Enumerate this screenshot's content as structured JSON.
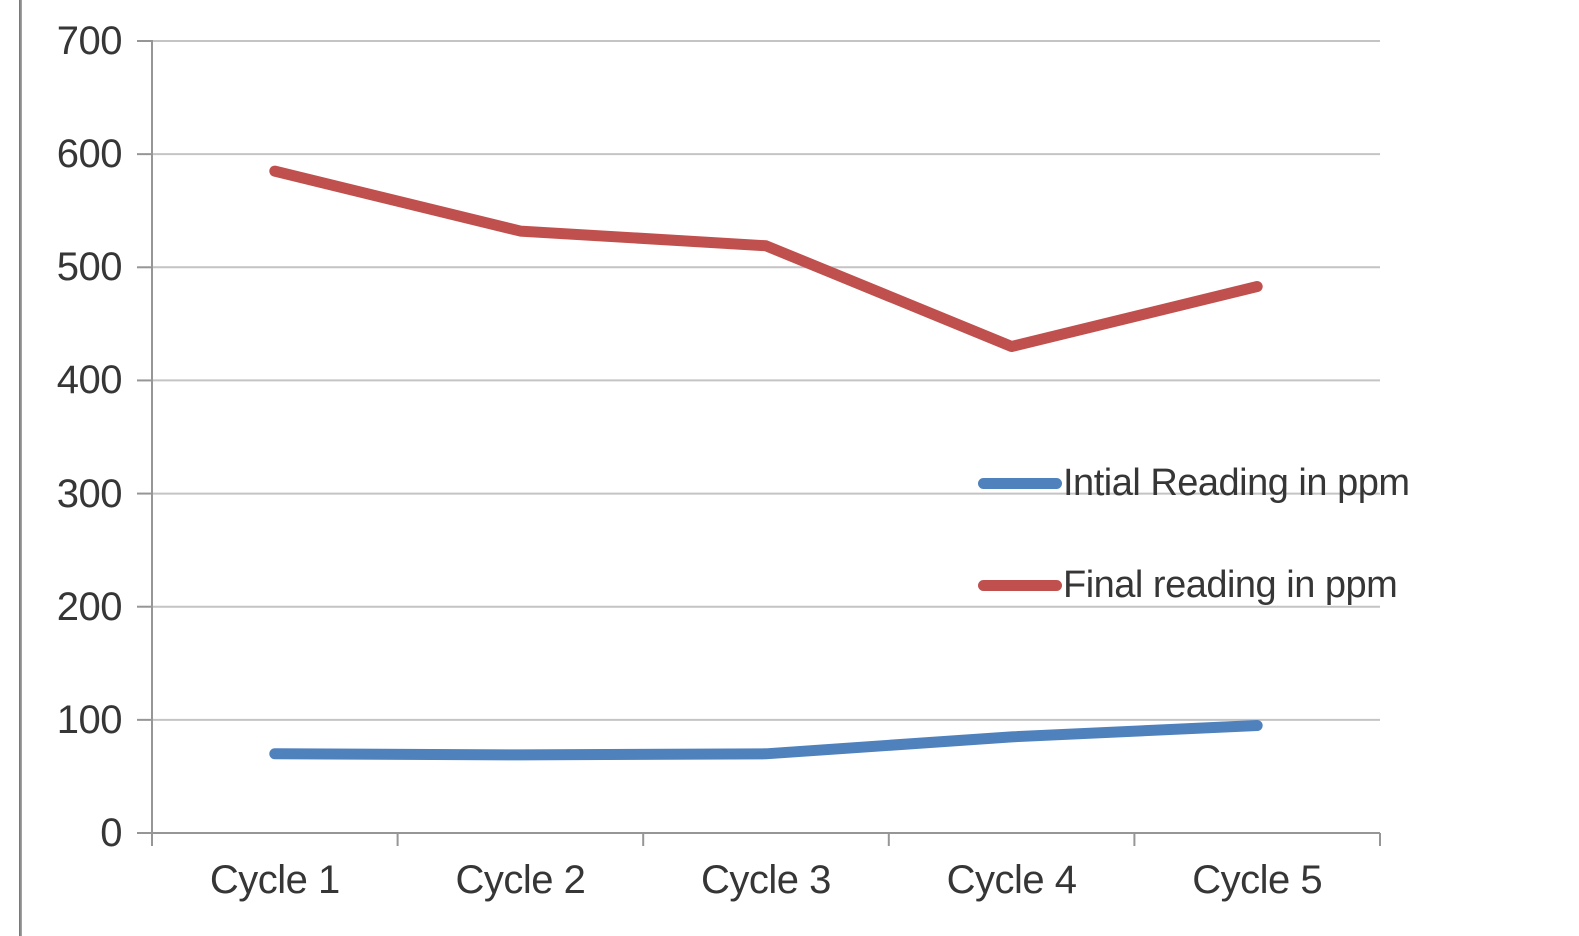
{
  "chart_data": {
    "type": "line",
    "title": "",
    "xlabel": "",
    "ylabel": "",
    "categories": [
      "Cycle 1",
      "Cycle 2",
      "Cycle 3",
      "Cycle 4",
      "Cycle 5"
    ],
    "series": [
      {
        "name": "Intial Reading in ppm",
        "color": "#4F81BD",
        "values": [
          70,
          69,
          70,
          85,
          95
        ]
      },
      {
        "name": "Final reading in ppm",
        "color": "#C0504D",
        "values": [
          585,
          532,
          519,
          430,
          483
        ]
      }
    ],
    "ylim": [
      0,
      700
    ],
    "yticks": [
      0,
      100,
      200,
      300,
      400,
      500,
      600,
      700
    ],
    "grid": true,
    "legend_position": "inside-middle-right"
  },
  "style": {
    "background": "#FFFFFF",
    "gridline_color": "#C4C4C4",
    "axis_color": "#969696",
    "text_color": "#363636",
    "frame_border_color": "#8C8C8C"
  }
}
